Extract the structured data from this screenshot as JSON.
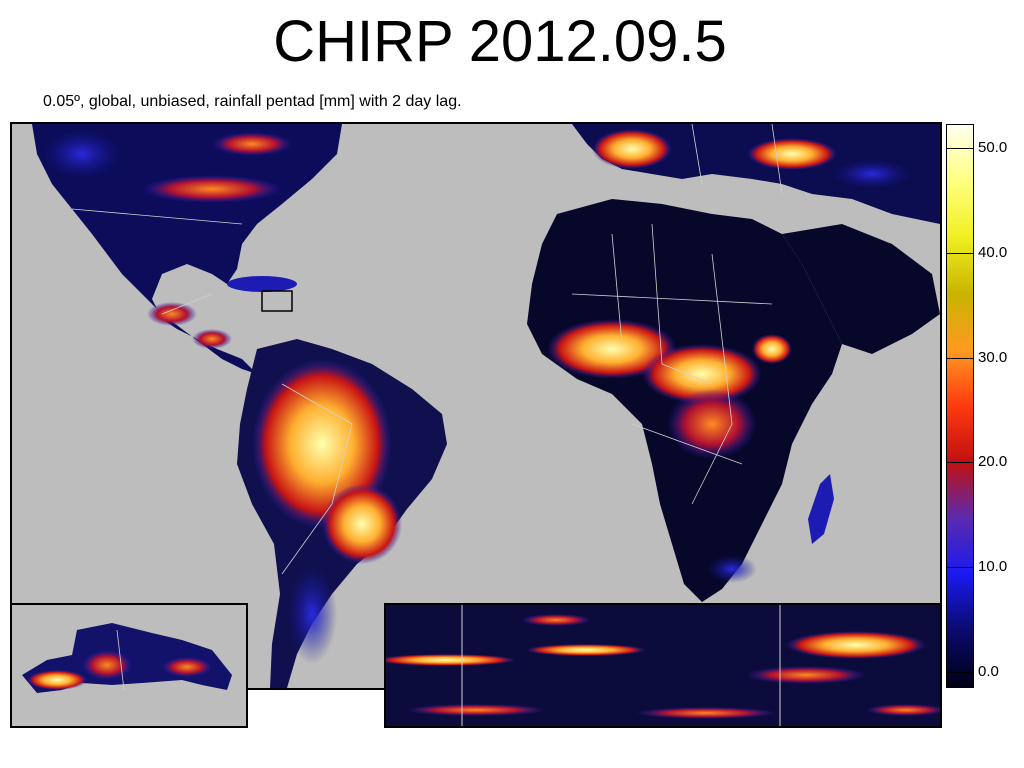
{
  "title": "CHIRP 2012.09.5",
  "subtitle": "0.05º, global, unbiased, rainfall pentad [mm] with 2 day lag.",
  "colorbar": {
    "labels": [
      "50.0",
      "40.0",
      "30.0",
      "20.0",
      "10.0",
      "0.0"
    ],
    "values": [
      50,
      40,
      30,
      20,
      10,
      0
    ],
    "stops": [
      {
        "v": 0,
        "color": "#000014"
      },
      {
        "v": 5,
        "color": "#0a0a6e"
      },
      {
        "v": 10,
        "color": "#1a1af0"
      },
      {
        "v": 15,
        "color": "#5a2ab0"
      },
      {
        "v": 20,
        "color": "#c01010"
      },
      {
        "v": 25,
        "color": "#ff3a10"
      },
      {
        "v": 30,
        "color": "#ff9a20"
      },
      {
        "v": 35,
        "color": "#c8b400"
      },
      {
        "v": 40,
        "color": "#f0f020"
      },
      {
        "v": 45,
        "color": "#ffff80"
      },
      {
        "v": 50,
        "color": "#ffffee"
      }
    ]
  },
  "colors": {
    "ocean": "#bdbdbd",
    "dry_land": "#060622",
    "low_rain": "#1c1cb4",
    "mid_rain": "#c81414",
    "high_rain": "#ffb030",
    "very_high_rain": "#ffff90",
    "border": "#d0d0d0"
  }
}
